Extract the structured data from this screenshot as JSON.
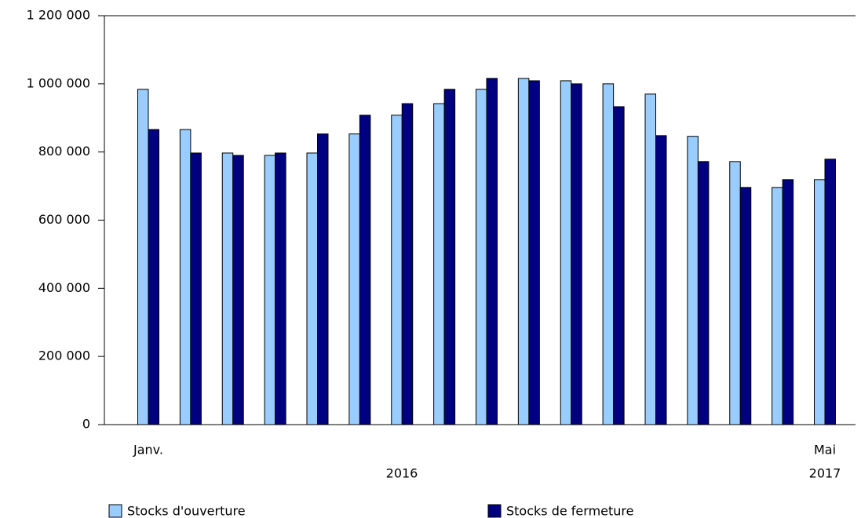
{
  "chart_data": {
    "type": "bar",
    "categories": [
      "Janv.",
      null,
      null,
      null,
      null,
      null,
      null,
      null,
      null,
      null,
      null,
      null,
      null,
      null,
      null,
      null,
      "Mai"
    ],
    "group_labels": [
      "2016",
      "2017"
    ],
    "series": [
      {
        "name": "Stocks d'ouverture",
        "color": "#99ccff",
        "values": [
          984000,
          866000,
          797000,
          790000,
          797000,
          853000,
          908000,
          942000,
          984000,
          1016000,
          1009000,
          1000000,
          970000,
          846000,
          772000,
          696000,
          719000
        ]
      },
      {
        "name": "Stocks de fermeture",
        "color": "#000080",
        "values": [
          866000,
          797000,
          790000,
          797000,
          853000,
          908000,
          942000,
          984000,
          1016000,
          1009000,
          1000000,
          933000,
          848000,
          772000,
          696000,
          719000,
          779000
        ]
      }
    ],
    "ylim": [
      0,
      1200000
    ],
    "yticks": [
      {
        "value": 0,
        "label": "0"
      },
      {
        "value": 200000,
        "label": "200 000"
      },
      {
        "value": 400000,
        "label": "400 000"
      },
      {
        "value": 600000,
        "label": "600 000"
      },
      {
        "value": 800000,
        "label": "800 000"
      },
      {
        "value": 1000000,
        "label": "1 000 000"
      },
      {
        "value": 1200000,
        "label": "1 200 000"
      }
    ],
    "grid": false,
    "legend": "bottom"
  }
}
